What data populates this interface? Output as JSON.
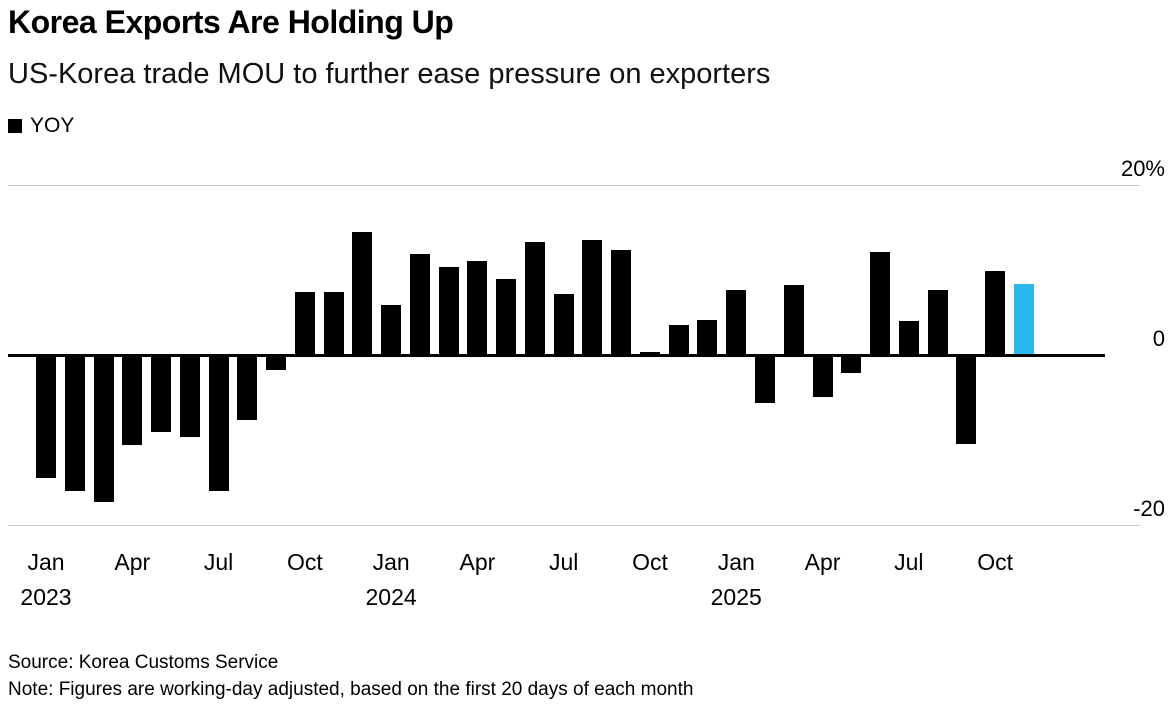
{
  "header": {
    "title": "Korea Exports Are Holding Up",
    "subtitle": "US-Korea trade MOU to further ease pressure on exporters"
  },
  "legend": {
    "label": "YOY",
    "swatch_color": "#000000"
  },
  "footer": {
    "source": "Source: Korea Customs Service",
    "note": "Note: Figures are working-day adjusted, based on the first 20 days of each month"
  },
  "chart_data": {
    "type": "bar",
    "title": "Korea Exports Are Holding Up",
    "subtitle": "US-Korea trade MOU to further ease pressure on exporters",
    "series_name": "YOY",
    "unit": "%",
    "ylim": [
      -20,
      20
    ],
    "grid": "horizontal",
    "legend_position": "top-left",
    "bar_color": "#000000",
    "highlight_color": "#2ab6ea",
    "highlight_index": 34,
    "yticks": [
      {
        "value": 20,
        "label": "20%"
      },
      {
        "value": 0,
        "label": "0"
      },
      {
        "value": -20,
        "label": "-20"
      }
    ],
    "x": [
      "Jan 2023",
      "Feb 2023",
      "Mar 2023",
      "Apr 2023",
      "May 2023",
      "Jun 2023",
      "Jul 2023",
      "Aug 2023",
      "Sep 2023",
      "Oct 2023",
      "Nov 2023",
      "Dec 2023",
      "Jan 2024",
      "Feb 2024",
      "Mar 2024",
      "Apr 2024",
      "May 2024",
      "Jun 2024",
      "Jul 2024",
      "Aug 2024",
      "Sep 2024",
      "Oct 2024",
      "Nov 2024",
      "Dec 2024",
      "Jan 2025",
      "Feb 2025",
      "Mar 2025",
      "Apr 2025",
      "May 2025",
      "Jun 2025",
      "Jul 2025",
      "Aug 2025",
      "Sep 2025",
      "Oct 2025",
      "Nov 2025"
    ],
    "values": [
      -14.5,
      -16.0,
      -17.3,
      -10.6,
      -9.1,
      -9.6,
      -16.0,
      -7.6,
      -1.8,
      7.4,
      7.4,
      14.5,
      5.9,
      11.9,
      10.4,
      11.1,
      8.9,
      13.3,
      7.2,
      13.5,
      12.4,
      0.3,
      3.5,
      4.1,
      7.6,
      -5.6,
      8.2,
      -4.9,
      -2.1,
      12.1,
      4.0,
      7.6,
      -10.5,
      9.9,
      8.4
    ],
    "xticks": [
      {
        "index": 0,
        "label": "Jan",
        "year": "2023"
      },
      {
        "index": 3,
        "label": "Apr"
      },
      {
        "index": 6,
        "label": "Jul"
      },
      {
        "index": 9,
        "label": "Oct"
      },
      {
        "index": 12,
        "label": "Jan",
        "year": "2024"
      },
      {
        "index": 15,
        "label": "Apr"
      },
      {
        "index": 18,
        "label": "Jul"
      },
      {
        "index": 21,
        "label": "Oct"
      },
      {
        "index": 24,
        "label": "Jan",
        "year": "2025"
      },
      {
        "index": 27,
        "label": "Apr"
      },
      {
        "index": 30,
        "label": "Jul"
      },
      {
        "index": 33,
        "label": "Oct"
      }
    ]
  }
}
